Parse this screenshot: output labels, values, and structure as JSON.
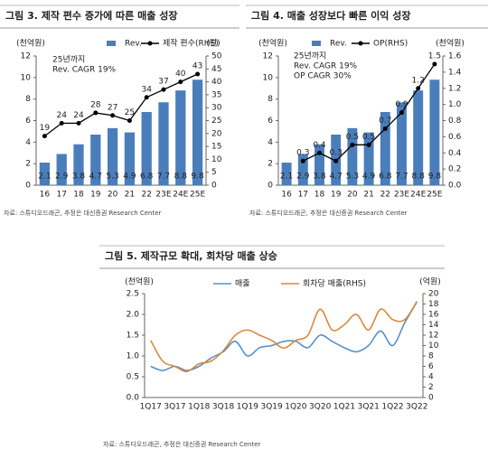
{
  "chart_data": [
    {
      "type": "combo",
      "title": "그림 3. 제작 편수 증가에 따른 매출 성장",
      "y_label": "(천억원)",
      "y2_label": "(편)",
      "annotation": [
        "25년까지",
        "Rev. CAGR 19%"
      ],
      "categories": [
        "16",
        "17",
        "18",
        "19",
        "20",
        "21",
        "22",
        "23E",
        "24E",
        "25E"
      ],
      "series": [
        {
          "name": "Rev.",
          "type": "bar",
          "color": "#4a7ebb",
          "values": [
            2.1,
            2.9,
            3.8,
            4.7,
            5.3,
            4.9,
            6.8,
            7.7,
            8.8,
            9.8
          ]
        },
        {
          "name": "제작 편수(RHS)",
          "type": "line",
          "axis": "y2",
          "color": "#000000",
          "values": [
            19,
            24,
            24,
            28,
            27,
            25,
            34,
            37,
            40,
            43
          ]
        }
      ],
      "ylim": [
        0,
        12
      ],
      "yticks": [
        0,
        2,
        4,
        6,
        8,
        10,
        12
      ],
      "y2lim": [
        0,
        50
      ],
      "y2ticks": [
        0,
        5,
        10,
        15,
        20,
        25,
        30,
        35,
        40,
        45,
        50
      ],
      "data_labels": true,
      "markers": true,
      "smooth": false,
      "source": "자료: 스튜디오드래곤, 추정은 대신증권 Research Center"
    },
    {
      "type": "combo",
      "title": "그림 4. 매출 성장보다 빠른 이익 성장",
      "y_label": "(천억원)",
      "y2_label": "(천억원)",
      "annotation": [
        "25년까지",
        "Rev. CAGR 19%",
        "OP CAGR 30%"
      ],
      "categories": [
        "16",
        "17",
        "18",
        "19",
        "20",
        "21",
        "22",
        "23E",
        "24E",
        "25E"
      ],
      "series": [
        {
          "name": "Rev.",
          "type": "bar",
          "color": "#4a7ebb",
          "values": [
            2.1,
            2.9,
            3.8,
            4.7,
            5.3,
            4.9,
            6.8,
            7.7,
            8.8,
            9.8
          ]
        },
        {
          "name": "OP(RHS)",
          "type": "line",
          "axis": "y2",
          "color": "#000000",
          "values": [
            null,
            0.3,
            0.4,
            0.3,
            0.5,
            0.5,
            0.7,
            0.9,
            1.2,
            1.5
          ]
        }
      ],
      "ylim": [
        0,
        12
      ],
      "yticks": [
        0,
        2,
        4,
        6,
        8,
        10,
        12
      ],
      "y2lim": [
        0,
        1.6
      ],
      "y2ticks": [
        {
          "value": 0,
          "label": "0.0"
        },
        0.2,
        0.4,
        0.6,
        0.8,
        {
          "value": 1,
          "label": "1.0"
        },
        1.2,
        1.4,
        1.6
      ],
      "data_labels": true,
      "markers": true,
      "smooth": false,
      "source": "자료: 스튜디오드래곤, 추정은 대신증권 Research Center"
    },
    {
      "type": "line",
      "title": "그림 5. 제작규모 확대, 회차당 매출 상승",
      "y_label": "(천억원)",
      "y2_label": "(억원)",
      "categories": [
        "1Q17",
        null,
        "3Q17",
        null,
        "1Q18",
        null,
        "3Q18",
        null,
        "1Q19",
        null,
        "3Q19",
        null,
        "1Q20",
        null,
        "3Q20",
        null,
        "1Q21",
        null,
        "3Q21",
        null,
        "1Q22",
        null,
        "3Q22"
      ],
      "series": [
        {
          "name": "매출",
          "type": "line",
          "color": "#5b8fc9",
          "values": [
            0.75,
            0.65,
            0.75,
            0.65,
            0.75,
            0.95,
            1.1,
            1.35,
            1.0,
            1.2,
            1.25,
            1.35,
            1.35,
            1.2,
            1.5,
            1.35,
            1.2,
            1.1,
            1.25,
            1.6,
            1.25,
            1.8,
            2.3
          ]
        },
        {
          "name": "회차당 매출(RHS)",
          "type": "line",
          "axis": "y2",
          "color": "#d98a3a",
          "values": [
            11,
            7,
            6,
            5,
            6.5,
            7,
            9,
            12,
            13,
            12,
            11,
            9.5,
            11,
            12,
            17,
            13,
            14,
            16,
            13,
            17,
            15,
            15,
            18.5
          ]
        }
      ],
      "ylim": [
        0,
        2.5
      ],
      "yticks": [
        {
          "value": 0,
          "label": "0.0"
        },
        0.5,
        {
          "value": 1,
          "label": "1.0"
        },
        1.5,
        {
          "value": 2,
          "label": "2.0"
        },
        2.5
      ],
      "y2lim": [
        0,
        20
      ],
      "y2ticks": [
        0,
        2,
        4,
        6,
        8,
        10,
        12,
        14,
        16,
        18,
        20
      ],
      "data_labels": false,
      "markers": false,
      "smooth": true,
      "source": "자료: 스튜디오드래곤, 추정은 대신증권 Research Center"
    }
  ]
}
